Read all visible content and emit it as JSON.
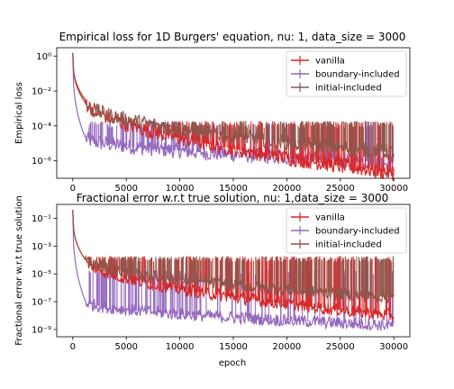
{
  "chart_data": [
    {
      "type": "line",
      "title": "Empirical loss for 1D Burgers' equation, nu: 1, data_size = 3000",
      "xlabel": "",
      "ylabel": "Empirical loss",
      "yscale": "log",
      "xlim": [
        -1500,
        31500
      ],
      "ylim": [
        1e-07,
        3
      ],
      "x_ticks": [
        0,
        5000,
        10000,
        15000,
        20000,
        25000,
        30000
      ],
      "x_tick_labels": [
        "0",
        "5000",
        "10000",
        "15000",
        "20000",
        "25000",
        "30000"
      ],
      "y_ticks": [
        1e-06,
        0.0001,
        0.01,
        1
      ],
      "y_tick_labels": [
        "10⁻⁶",
        "10⁻⁴",
        "10⁻²",
        "10⁰"
      ],
      "grid": false,
      "legend_position": "top-right",
      "series": [
        {
          "name": "vanilla",
          "color": "#d62728",
          "start": 1.5,
          "floor_start": 0.003,
          "spike_top": 0.0001,
          "floor_end": 2e-07
        },
        {
          "name": "boundary-included",
          "color": "#9467bd",
          "start": 1.5,
          "floor_start": 2e-05,
          "spike_top": 0.0001,
          "floor_end": 8e-07
        },
        {
          "name": "initial-included",
          "color": "#8c564b",
          "start": 1.5,
          "floor_start": 0.002,
          "spike_top": 0.0001,
          "floor_end": 3e-06
        }
      ]
    },
    {
      "type": "line",
      "title": "Fractional error w.r.t true solution, nu: 1,data_size = 3000",
      "xlabel": "epoch",
      "ylabel": "Fractional error w.r.t true solution",
      "yscale": "log",
      "xlim": [
        -1500,
        31500
      ],
      "ylim": [
        3e-10,
        1
      ],
      "x_ticks": [
        0,
        5000,
        10000,
        15000,
        20000,
        25000,
        30000
      ],
      "x_tick_labels": [
        "0",
        "5000",
        "10000",
        "15000",
        "20000",
        "25000",
        "30000"
      ],
      "y_ticks": [
        1e-09,
        1e-07,
        1e-05,
        0.001,
        0.1
      ],
      "y_tick_labels": [
        "10⁻⁹",
        "10⁻⁷",
        "10⁻⁵",
        "10⁻³",
        "10⁻¹"
      ],
      "grid": false,
      "legend_position": "top-right",
      "series": [
        {
          "name": "vanilla",
          "color": "#d62728",
          "start": 0.4,
          "floor_start": 0.0001,
          "spike_top": 0.0001,
          "floor_end": 1e-08
        },
        {
          "name": "boundary-included",
          "color": "#9467bd",
          "start": 0.4,
          "floor_start": 1e-07,
          "spike_top": 1e-05,
          "floor_end": 2e-09
        },
        {
          "name": "initial-included",
          "color": "#8c564b",
          "start": 0.4,
          "floor_start": 0.0001,
          "spike_top": 0.0001,
          "floor_end": 2e-07
        }
      ]
    }
  ]
}
